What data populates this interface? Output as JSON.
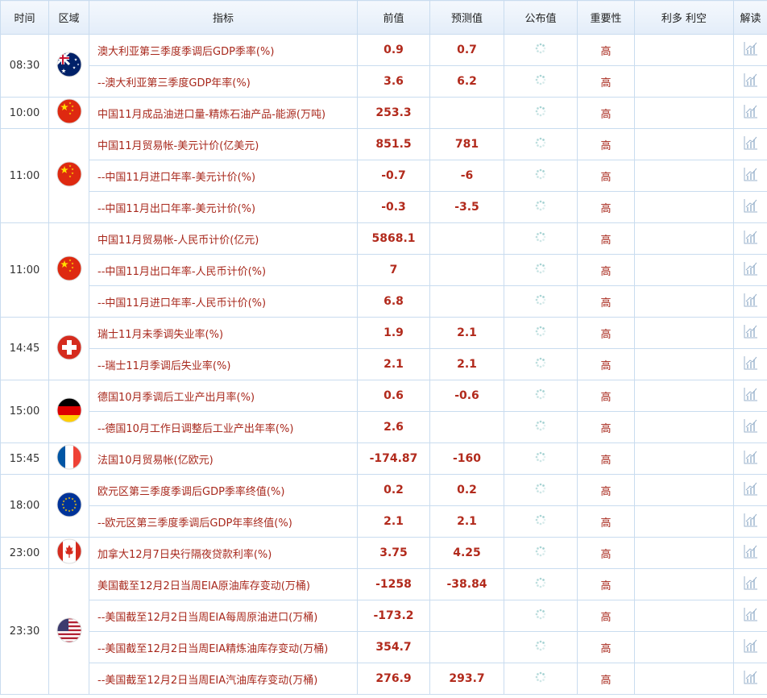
{
  "header": {
    "columns": [
      "时间",
      "区域",
      "指标",
      "前值",
      "预测值",
      "公布值",
      "重要性",
      "利多 利空",
      "解读"
    ]
  },
  "groups": [
    {
      "time": "08:30",
      "rows": [
        {
          "indicator": "澳大利亚第三季度季调后GDP季率(%)",
          "previous": 0.9,
          "forecast": 0.7,
          "importance": "高"
        },
        {
          "indicator": "--澳大利亚第三季度GDP年率(%)",
          "previous": 3.6,
          "forecast": 6.2,
          "importance": "高"
        }
      ]
    },
    {
      "time": "10:00",
      "rows": [
        {
          "indicator": "中国11月成品油进口量-精炼石油产品-能源(万吨)",
          "previous": 253.3,
          "forecast": null,
          "importance": "高"
        }
      ]
    },
    {
      "time": "11:00",
      "rows": [
        {
          "indicator": "中国11月贸易帐-美元计价(亿美元)",
          "previous": 851.5,
          "forecast": 781,
          "importance": "高"
        },
        {
          "indicator": "--中国11月进口年率-美元计价(%)",
          "previous": -0.7,
          "forecast": -6,
          "importance": "高"
        },
        {
          "indicator": "--中国11月出口年率-美元计价(%)",
          "previous": -0.3,
          "forecast": -3.5,
          "importance": "高"
        }
      ]
    },
    {
      "time": "11:00",
      "rows": [
        {
          "indicator": "中国11月贸易帐-人民币计价(亿元)",
          "previous": 5868.1,
          "forecast": null,
          "importance": "高"
        },
        {
          "indicator": "--中国11月出口年率-人民币计价(%)",
          "previous": 7,
          "forecast": null,
          "importance": "高"
        },
        {
          "indicator": "--中国11月进口年率-人民币计价(%)",
          "previous": 6.8,
          "forecast": null,
          "importance": "高"
        }
      ]
    },
    {
      "time": "14:45",
      "rows": [
        {
          "indicator": "瑞士11月未季调失业率(%)",
          "previous": 1.9,
          "forecast": 2.1,
          "importance": "高"
        },
        {
          "indicator": "--瑞士11月季调后失业率(%)",
          "previous": 2.1,
          "forecast": 2.1,
          "importance": "高"
        }
      ]
    },
    {
      "time": "15:00",
      "rows": [
        {
          "indicator": "德国10月季调后工业产出月率(%)",
          "previous": 0.6,
          "forecast": -0.6,
          "importance": "高"
        },
        {
          "indicator": "--德国10月工作日调整后工业产出年率(%)",
          "previous": 2.6,
          "forecast": null,
          "importance": "高"
        }
      ]
    },
    {
      "time": "15:45",
      "rows": [
        {
          "indicator": "法国10月贸易帐(亿欧元)",
          "previous": -174.87,
          "forecast": -160,
          "importance": "高"
        }
      ]
    },
    {
      "time": "18:00",
      "rows": [
        {
          "indicator": "欧元区第三季度季调后GDP季率终值(%)",
          "previous": 0.2,
          "forecast": 0.2,
          "importance": "高"
        },
        {
          "indicator": "--欧元区第三季度季调后GDP年率终值(%)",
          "previous": 2.1,
          "forecast": 2.1,
          "importance": "高"
        }
      ]
    },
    {
      "time": "23:00",
      "rows": [
        {
          "indicator": "加拿大12月7日央行隔夜贷款利率(%)",
          "previous": 3.75,
          "forecast": 4.25,
          "importance": "高"
        }
      ]
    },
    {
      "time": "23:30",
      "rows": [
        {
          "indicator": "美国截至12月2日当周EIA原油库存变动(万桶)",
          "previous": -1258,
          "forecast": -38.84,
          "importance": "高"
        },
        {
          "indicator": "--美国截至12月2日当周EIA每周原油进口(万桶)",
          "previous": -173.2,
          "forecast": null,
          "importance": "高"
        },
        {
          "indicator": "--美国截至12月2日当周EIA精炼油库存变动(万桶)",
          "previous": 354.7,
          "forecast": null,
          "importance": "高"
        },
        {
          "indicator": "--美国截至12月2日当周EIA汽油库存变动(万桶)",
          "previous": 276.9,
          "forecast": 293.7,
          "importance": "高"
        }
      ]
    }
  ]
}
